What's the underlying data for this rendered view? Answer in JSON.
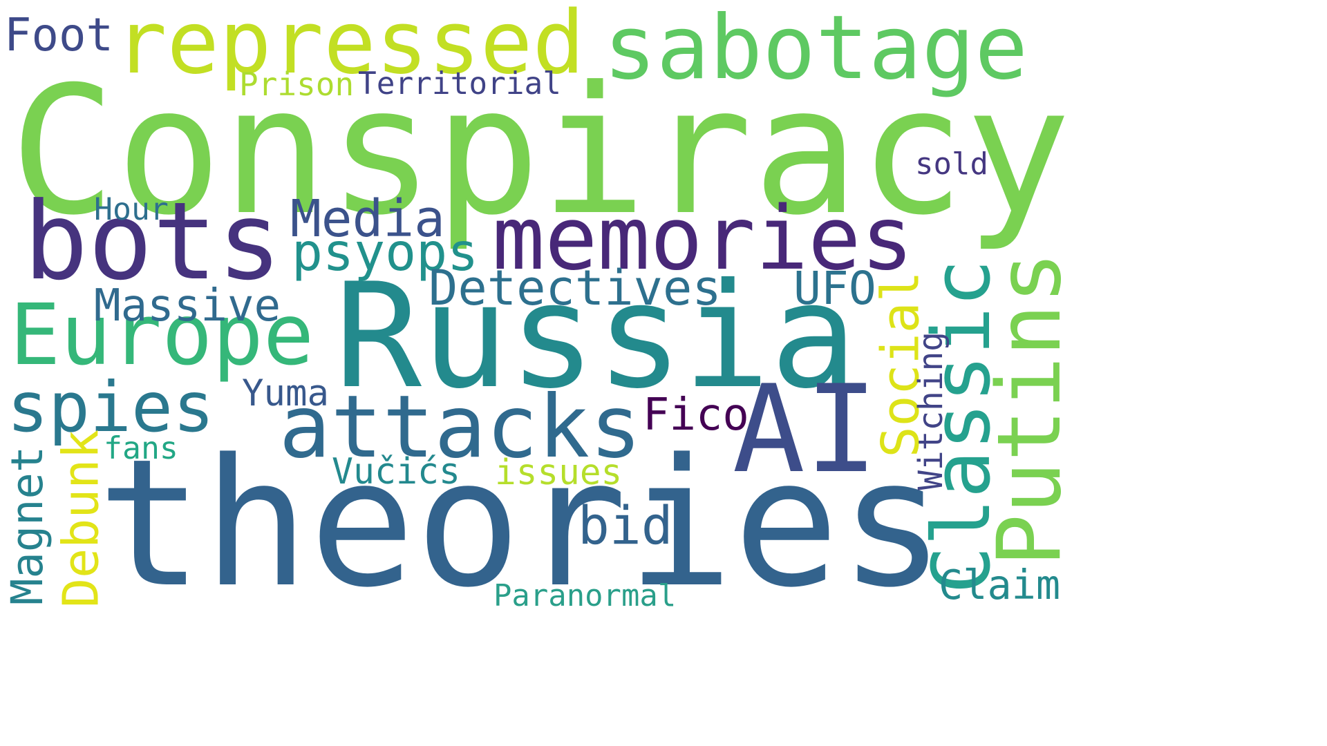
{
  "words": [
    {
      "text": "Conspiracy",
      "color": "#7ad151",
      "vertical": false
    },
    {
      "text": "theories",
      "color": "#33638d",
      "vertical": false
    },
    {
      "text": "Russia",
      "color": "#238a8d",
      "vertical": false
    },
    {
      "text": "AI",
      "color": "#3d4d8a",
      "vertical": false
    },
    {
      "text": "bots",
      "color": "#46337e",
      "vertical": false
    },
    {
      "text": "memories",
      "color": "#482878",
      "vertical": false
    },
    {
      "text": "repressed",
      "color": "#c2df23",
      "vertical": false
    },
    {
      "text": "sabotage",
      "color": "#5ec962",
      "vertical": false
    },
    {
      "text": "Europe",
      "color": "#35b779",
      "vertical": false
    },
    {
      "text": "attacks",
      "color": "#306a8e",
      "vertical": false
    },
    {
      "text": "Putins",
      "color": "#7ad151",
      "vertical": true
    },
    {
      "text": "spies",
      "color": "#2a788e",
      "vertical": false
    },
    {
      "text": "Classic",
      "color": "#25a18e",
      "vertical": true
    },
    {
      "text": "Social",
      "color": "#dde318",
      "vertical": true
    },
    {
      "text": "Media",
      "color": "#3b528b",
      "vertical": false
    },
    {
      "text": "psyops",
      "color": "#21918c",
      "vertical": false
    },
    {
      "text": "Detectives",
      "color": "#2d708e",
      "vertical": false
    },
    {
      "text": "Massive",
      "color": "#306a8e",
      "vertical": false
    },
    {
      "text": "UFO",
      "color": "#2c728e",
      "vertical": false
    },
    {
      "text": "Debunk",
      "color": "#e2e418",
      "vertical": true
    },
    {
      "text": "Magnet",
      "color": "#26828e",
      "vertical": true
    },
    {
      "text": "bid",
      "color": "#33638d",
      "vertical": false
    },
    {
      "text": "Claim",
      "color": "#238a8d",
      "vertical": false
    },
    {
      "text": "Fico",
      "color": "#440154",
      "vertical": false
    },
    {
      "text": "Foot",
      "color": "#3e4a89",
      "vertical": false
    },
    {
      "text": "Territorial",
      "color": "#404387",
      "vertical": false
    },
    {
      "text": "Prison",
      "color": "#addc30",
      "vertical": false
    },
    {
      "text": "sold",
      "color": "#453781",
      "vertical": false
    },
    {
      "text": "Hour",
      "color": "#2e6f8e",
      "vertical": false
    },
    {
      "text": "Yuma",
      "color": "#38588c",
      "vertical": false
    },
    {
      "text": "fans",
      "color": "#22a785",
      "vertical": false
    },
    {
      "text": "Vučićs",
      "color": "#23898e",
      "vertical": false
    },
    {
      "text": "issues",
      "color": "#b5de2b",
      "vertical": false
    },
    {
      "text": "Witching",
      "color": "#414487",
      "vertical": true
    },
    {
      "text": "Paranormal",
      "color": "#2a9f8a",
      "vertical": false
    }
  ]
}
